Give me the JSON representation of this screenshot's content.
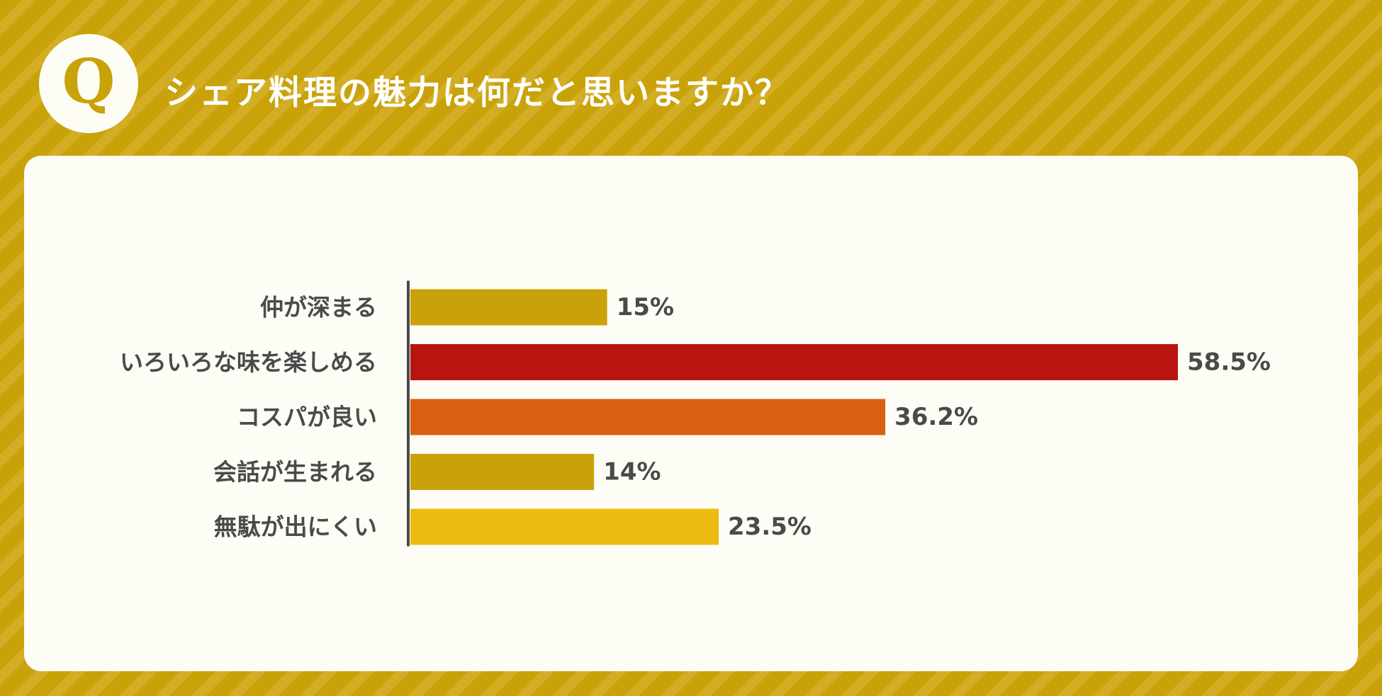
{
  "header": {
    "badge_letter": "Q",
    "question": "シェア料理の魅力は何だと思いますか？"
  },
  "colors": {
    "background": "#c9a20a",
    "stripe": "#d3ae24",
    "card": "#fdfdf6",
    "text": "#4a4a4a"
  },
  "chart_data": {
    "type": "bar",
    "orientation": "horizontal",
    "title": "",
    "xlabel": "",
    "ylabel": "",
    "categories": [
      "仲が深まる",
      "いろいろな味を楽しめる",
      "コスパが良い",
      "会話が生まれる",
      "無駄が出にくい"
    ],
    "values": [
      15,
      58.5,
      36.2,
      14,
      23.5
    ],
    "value_labels": [
      "15%",
      "58.5%",
      "36.2%",
      "14%",
      "23.5%"
    ],
    "bar_colors": [
      "#c9a20a",
      "#b81410",
      "#d96011",
      "#c9a20a",
      "#ebbb12"
    ],
    "unit": "%",
    "xlim": [
      0,
      58.5
    ],
    "grid": false,
    "legend": "none"
  }
}
